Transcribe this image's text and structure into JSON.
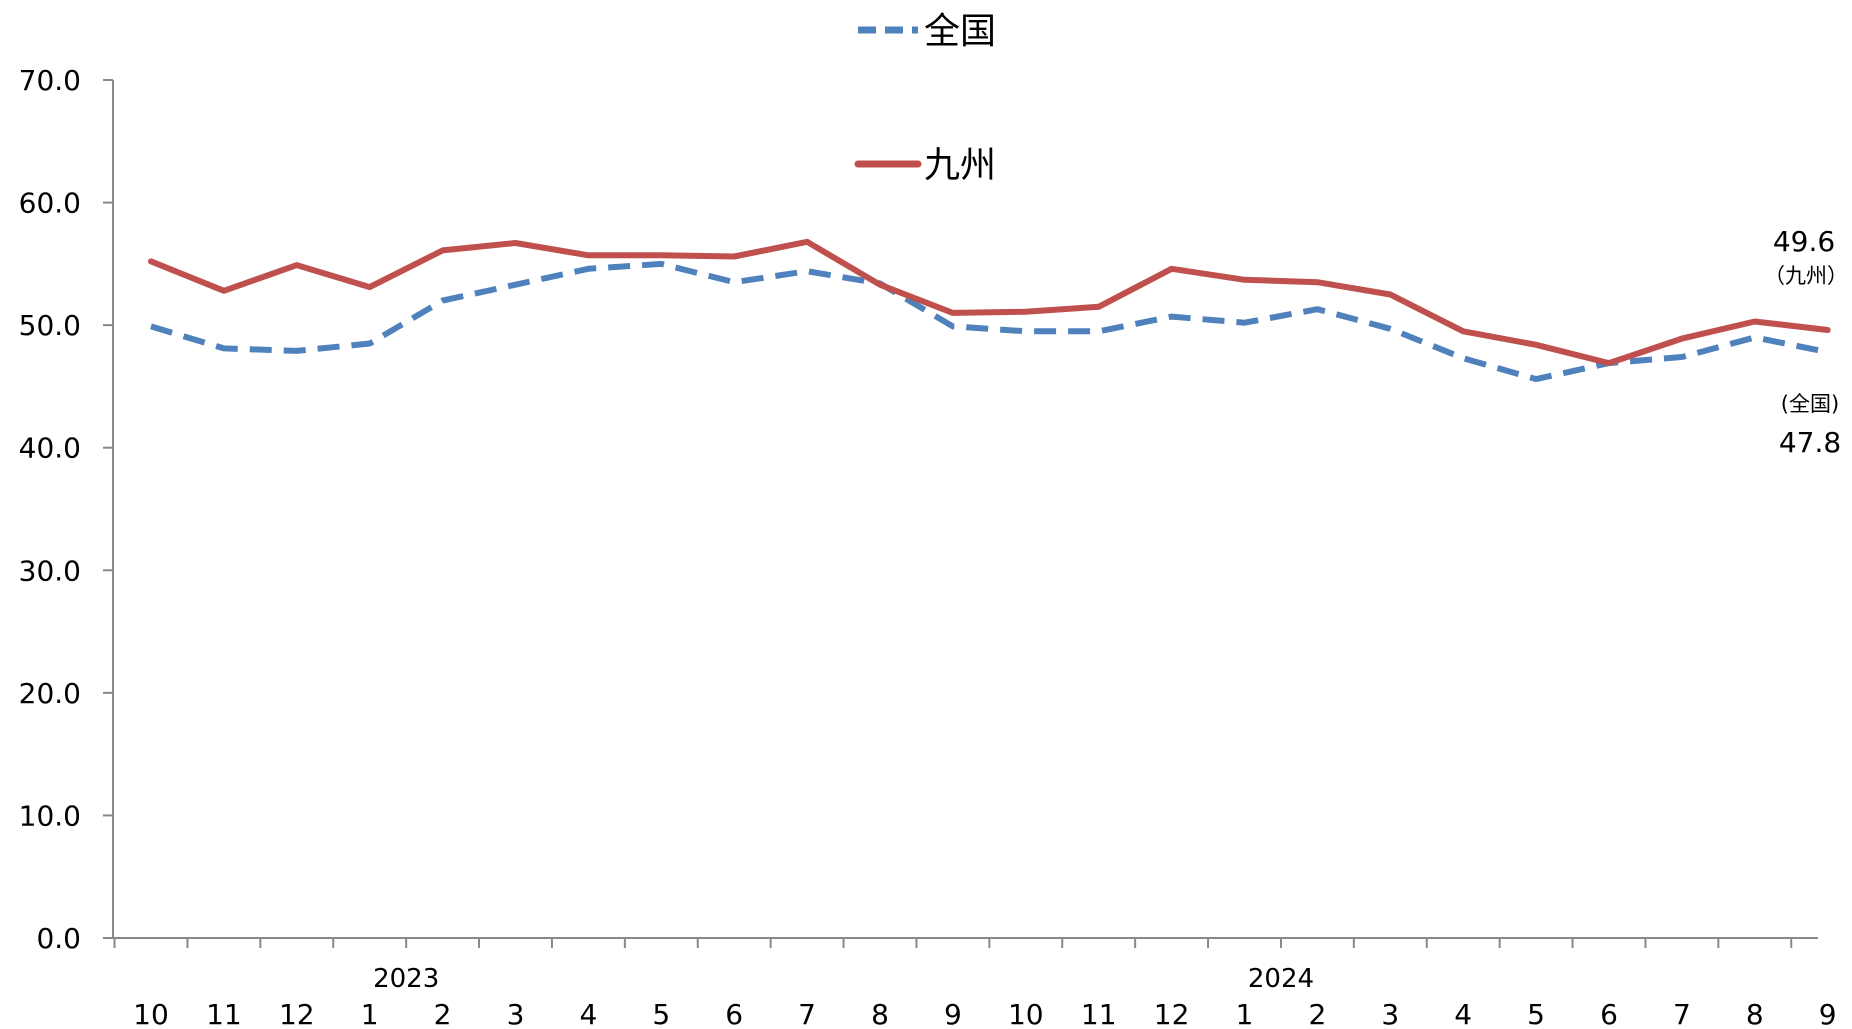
{
  "chart_data": {
    "type": "line",
    "title": "",
    "xlabel": "",
    "ylabel": "",
    "ylim": [
      0,
      70
    ],
    "yticks": [
      "0.0",
      "10.0",
      "20.0",
      "30.0",
      "40.0",
      "50.0",
      "60.0",
      "70.0"
    ],
    "categories": [
      "10",
      "11",
      "12",
      "1",
      "2",
      "3",
      "4",
      "5",
      "6",
      "7",
      "8",
      "9",
      "10",
      "11",
      "12",
      "1",
      "2",
      "3",
      "4",
      "5",
      "6",
      "7",
      "8",
      "9"
    ],
    "year_labels": [
      {
        "label": "2023",
        "between": [
          3,
          4
        ]
      },
      {
        "label": "2024",
        "between": [
          15,
          16
        ]
      }
    ],
    "grid": false,
    "legend": "top-center",
    "series": [
      {
        "name": "全国",
        "color": "#4F81BD",
        "style": "dashed",
        "values": [
          49.9,
          48.1,
          47.9,
          48.5,
          52.0,
          53.3,
          54.6,
          55.0,
          53.5,
          54.4,
          53.4,
          49.9,
          49.5,
          49.5,
          50.7,
          50.2,
          51.3,
          49.7,
          47.3,
          45.6,
          46.9,
          47.4,
          49.0,
          47.8
        ],
        "end_label": {
          "value": "47.8",
          "note": "(全国)"
        }
      },
      {
        "name": "九州",
        "color": "#C0504D",
        "style": "solid",
        "values": [
          55.2,
          52.8,
          54.9,
          53.1,
          56.1,
          56.7,
          55.7,
          55.7,
          55.6,
          56.8,
          53.3,
          51.0,
          51.1,
          51.5,
          54.6,
          53.7,
          53.5,
          52.5,
          49.5,
          48.4,
          46.9,
          48.9,
          50.3,
          49.6
        ],
        "end_label": {
          "value": "49.6",
          "note": "（九州）"
        }
      }
    ]
  }
}
